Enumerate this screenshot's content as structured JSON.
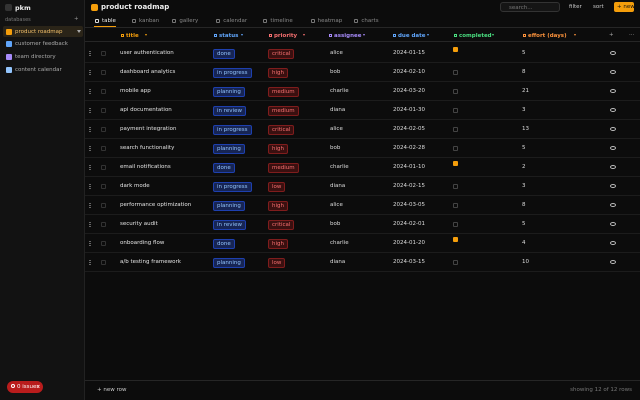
{
  "app": {
    "name": "pkm"
  },
  "sidebar": {
    "section": "databases",
    "add": "+",
    "items": [
      {
        "label": "product roadmap",
        "icon": "#f59e0b",
        "active": true
      },
      {
        "label": "customer feedback",
        "icon": "#60a5fa",
        "active": false
      },
      {
        "label": "team directory",
        "icon": "#a78bfa",
        "active": false
      },
      {
        "label": "content calendar",
        "icon": "#93c5fd",
        "active": false
      }
    ]
  },
  "header": {
    "title": "product roadmap",
    "search": "search...",
    "filter": "filter",
    "sort": "sort",
    "new": "+ new"
  },
  "tabs": {
    "active": 0,
    "items": [
      "table",
      "kanban",
      "gallery",
      "calendar",
      "timeline",
      "heatmap",
      "charts"
    ]
  },
  "table": {
    "add_column": "+",
    "more": "···",
    "columns": [
      {
        "label": "title",
        "color": "#f59e0b"
      },
      {
        "label": "status",
        "color": "#60a5fa"
      },
      {
        "label": "priority",
        "color": "#f87171"
      },
      {
        "label": "assignee",
        "color": "#a78bfa"
      },
      {
        "label": "due date",
        "color": "#60a5fa"
      },
      {
        "label": "completed",
        "color": "#4ade80"
      },
      {
        "label": "effort (days)",
        "color": "#fb923c"
      }
    ],
    "rows": [
      [
        "user authentication",
        "done",
        "critical",
        "alice",
        "2024-01-15",
        true,
        "5"
      ],
      [
        "dashboard analytics",
        "in progress",
        "high",
        "bob",
        "2024-02-10",
        false,
        "8"
      ],
      [
        "mobile app",
        "planning",
        "medium",
        "charlie",
        "2024-03-20",
        false,
        "21"
      ],
      [
        "api documentation",
        "in review",
        "medium",
        "diana",
        "2024-01-30",
        false,
        "3"
      ],
      [
        "payment integration",
        "in progress",
        "critical",
        "alice",
        "2024-02-05",
        false,
        "13"
      ],
      [
        "search functionality",
        "planning",
        "high",
        "bob",
        "2024-02-28",
        false,
        "5"
      ],
      [
        "email notifications",
        "done",
        "medium",
        "charlie",
        "2024-01-10",
        true,
        "2"
      ],
      [
        "dark mode",
        "in progress",
        "low",
        "diana",
        "2024-02-15",
        false,
        "3"
      ],
      [
        "performance optimization",
        "planning",
        "high",
        "alice",
        "2024-03-05",
        false,
        "8"
      ],
      [
        "security audit",
        "in review",
        "critical",
        "bob",
        "2024-02-01",
        false,
        "5"
      ],
      [
        "onboarding flow",
        "done",
        "high",
        "charlie",
        "2024-01-20",
        true,
        "4"
      ],
      [
        "a/b testing framework",
        "planning",
        "low",
        "diana",
        "2024-03-15",
        false,
        "10"
      ]
    ]
  },
  "footer": {
    "add_row": "+ new row",
    "count": "showing 12 of 12 rows"
  },
  "status": {
    "issues": "0 issues"
  }
}
